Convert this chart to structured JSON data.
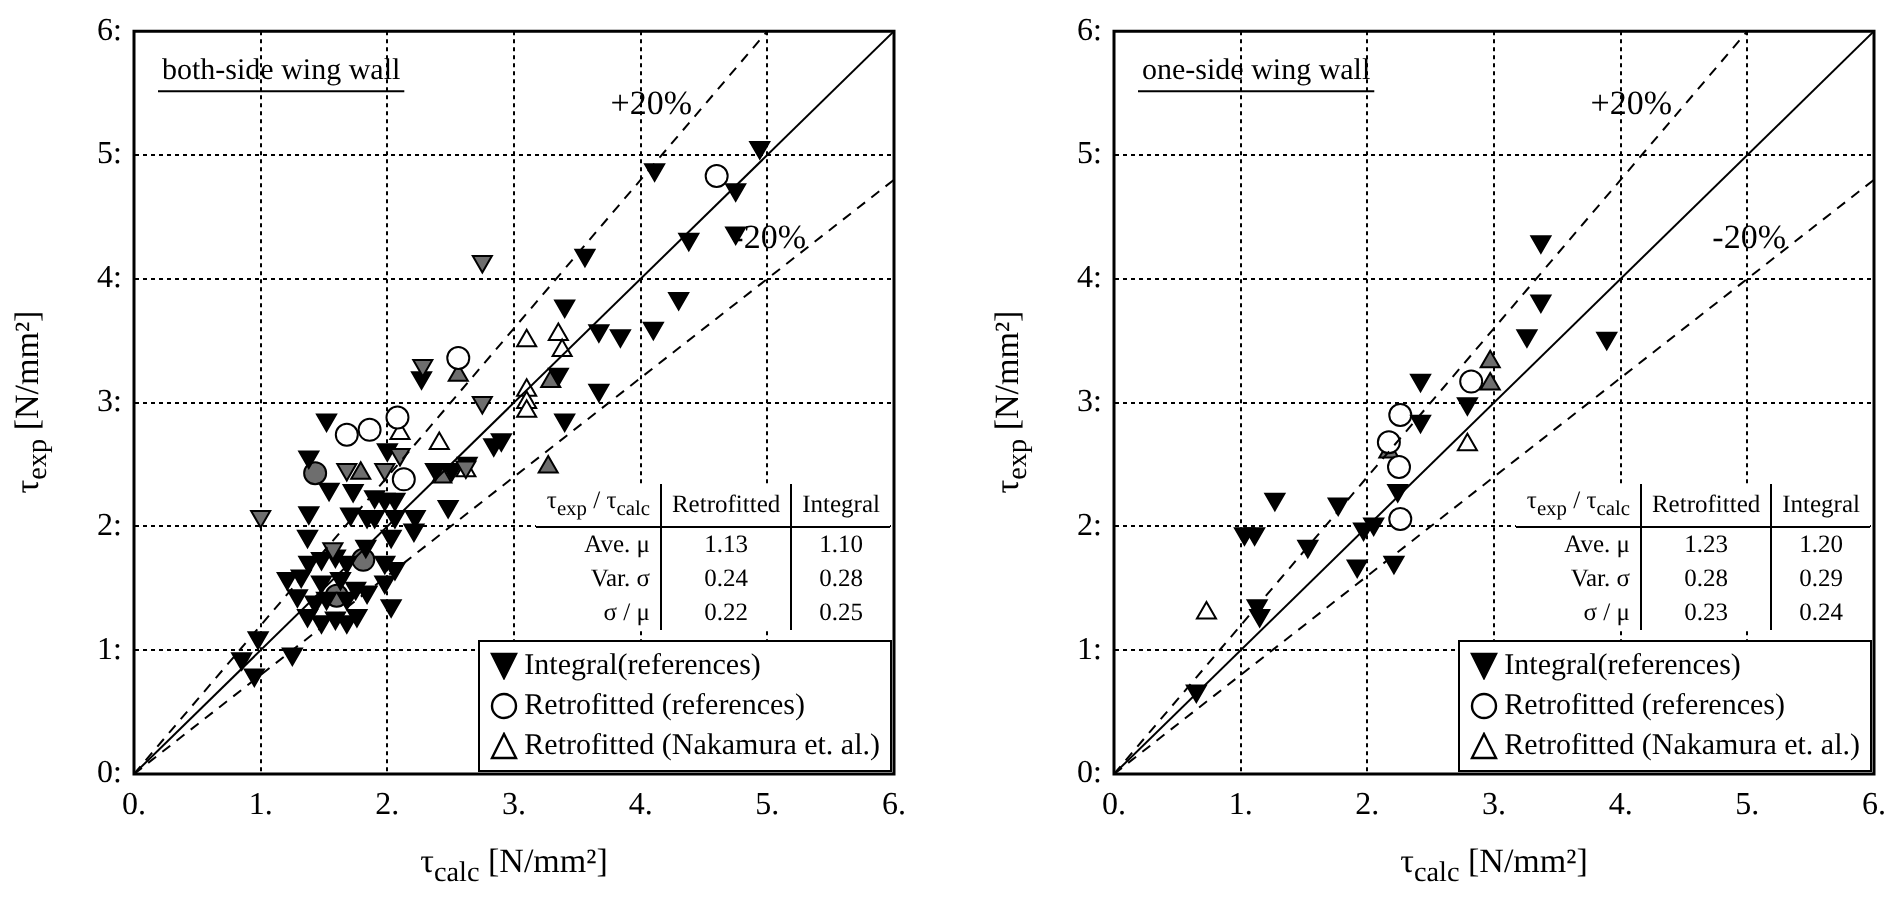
{
  "chart_data": [
    {
      "type": "scatter",
      "title": "both-side wing wall",
      "xlabel": "τ$_{calc}$ [N/mm²]",
      "ylabel": "τ$_{exp}$ [N/mm²]",
      "xlim": [
        0,
        6
      ],
      "ylim": [
        0,
        6
      ],
      "xticks": [
        {
          "value": 0,
          "label": "0."
        },
        {
          "value": 1,
          "label": "1."
        },
        {
          "value": 2,
          "label": "2."
        },
        {
          "value": 3,
          "label": "3."
        },
        {
          "value": 4,
          "label": "4."
        },
        {
          "value": 5,
          "label": "5."
        },
        {
          "value": 6,
          "label": "6."
        }
      ],
      "yticks": [
        {
          "value": 0,
          "label": "0:"
        },
        {
          "value": 1,
          "label": "1:"
        },
        {
          "value": 2,
          "label": "2:"
        },
        {
          "value": 3,
          "label": "3:"
        },
        {
          "value": 4,
          "label": "4:"
        },
        {
          "value": 5,
          "label": "5:"
        },
        {
          "value": 6,
          "label": "6:"
        }
      ],
      "grid": true,
      "legend": "bottom right",
      "series": [
        {
          "type": "line",
          "x": [
            0,
            6
          ],
          "values": [
            0,
            6
          ],
          "color": "#000000",
          "line_style": "solid",
          "marker": "none"
        },
        {
          "type": "line",
          "name": "+20%",
          "x": [
            0,
            5
          ],
          "values": [
            0,
            6
          ],
          "color": "#000000",
          "line_style": "dashed",
          "marker": "none"
        },
        {
          "type": "line",
          "name": "-20%",
          "x": [
            0,
            6
          ],
          "values": [
            0,
            4.8
          ],
          "color": "#000000",
          "line_style": "dashed",
          "marker": "none"
        },
        {
          "name": "Integral(references)",
          "color": "#000000",
          "marker": "triangle_down",
          "x": [
            0.85,
            0.95,
            0.98,
            1.25,
            1.37,
            1.48,
            1.59,
            1.68,
            1.76,
            2.03,
            1.29,
            1.43,
            1.52,
            1.68,
            1.84,
            1.21,
            1.32,
            1.48,
            1.63,
            1.75,
            1.98,
            1.38,
            1.48,
            1.59,
            1.68,
            1.83,
            1.98,
            2.06,
            1.37,
            2.03,
            2.21,
            1.38,
            1.71,
            1.84,
            1.9,
            2.06,
            2.22,
            1.9,
            1.98,
            2.06,
            2.48,
            1.54,
            1.73,
            1.38,
            2.0,
            1.52,
            2.38,
            2.51,
            2.63,
            2.84,
            2.9,
            3.4,
            3.67,
            3.35,
            2.27,
            3.67,
            3.84,
            4.1,
            3.4,
            4.3,
            3.56,
            4.38,
            4.75,
            4.75,
            4.11,
            4.94,
            1.0,
            2.75,
            2.28,
            1.68,
            1.98,
            2.1,
            2.62,
            2.75,
            1.57
          ],
          "values": [
            0.93,
            0.8,
            1.1,
            0.97,
            1.28,
            1.23,
            1.26,
            1.23,
            1.28,
            1.36,
            1.44,
            1.39,
            1.42,
            1.42,
            1.47,
            1.58,
            1.6,
            1.55,
            1.58,
            1.5,
            1.55,
            1.71,
            1.74,
            1.76,
            1.71,
            1.84,
            1.71,
            1.66,
            1.92,
            1.92,
            1.97,
            2.11,
            2.1,
            2.08,
            2.08,
            2.08,
            2.08,
            2.24,
            2.22,
            2.22,
            2.16,
            2.3,
            2.29,
            2.56,
            2.62,
            2.86,
            2.46,
            2.46,
            2.51,
            2.66,
            2.7,
            2.86,
            3.1,
            3.23,
            3.2,
            3.58,
            3.54,
            3.6,
            3.78,
            3.84,
            4.19,
            4.32,
            4.37,
            4.72,
            4.88,
            5.06,
            2.08,
            4.14,
            3.3,
            2.46,
            2.46,
            2.58,
            2.48,
            3.0,
            1.82
          ],
          "colors": [
            "#000000",
            "#000000",
            "#000000",
            "#000000",
            "#000000",
            "#000000",
            "#000000",
            "#000000",
            "#000000",
            "#000000",
            "#000000",
            "#000000",
            "#000000",
            "#000000",
            "#000000",
            "#000000",
            "#000000",
            "#000000",
            "#000000",
            "#000000",
            "#000000",
            "#000000",
            "#000000",
            "#000000",
            "#000000",
            "#000000",
            "#000000",
            "#000000",
            "#000000",
            "#000000",
            "#000000",
            "#000000",
            "#000000",
            "#000000",
            "#000000",
            "#000000",
            "#000000",
            "#000000",
            "#000000",
            "#000000",
            "#000000",
            "#000000",
            "#000000",
            "#000000",
            "#000000",
            "#000000",
            "#000000",
            "#000000",
            "#000000",
            "#000000",
            "#000000",
            "#000000",
            "#000000",
            "#000000",
            "#000000",
            "#000000",
            "#000000",
            "#000000",
            "#000000",
            "#000000",
            "#000000",
            "#000000",
            "#000000",
            "#000000",
            "#000000",
            "#000000",
            "#6e6e6e",
            "#6e6e6e",
            "#6e6e6e",
            "#6e6e6e",
            "#6e6e6e",
            "#6e6e6e",
            "#6e6e6e",
            "#6e6e6e",
            "#6e6e6e"
          ]
        },
        {
          "name": "Retrofitted (references)",
          "color": "#000000",
          "marker": "circle",
          "x": [
            2.56,
            1.68,
            1.86,
            2.08,
            2.13,
            4.6,
            1.43,
            1.81,
            1.6
          ],
          "values": [
            3.36,
            2.74,
            2.78,
            2.88,
            2.38,
            4.83,
            2.43,
            1.73,
            1.44
          ],
          "colors": [
            "#ffffff",
            "#ffffff",
            "#ffffff",
            "#ffffff",
            "#ffffff",
            "#ffffff",
            "#6e6e6e",
            "#6e6e6e",
            "#6e6e6e"
          ]
        },
        {
          "name": "Retrofitted (Nakamura et. al.)",
          "color": "#000000",
          "marker": "triangle",
          "x": [
            2.1,
            2.41,
            2.62,
            3.1,
            3.35,
            3.38,
            3.1,
            3.1,
            3.1,
            2.56,
            1.79,
            2.43,
            3.29,
            3.27
          ],
          "values": [
            2.75,
            2.67,
            2.45,
            3.5,
            3.55,
            3.42,
            3.1,
            3.0,
            2.93,
            3.22,
            2.43,
            2.4,
            3.17,
            2.48
          ],
          "colors": [
            "#ffffff",
            "#ffffff",
            "#ffffff",
            "#ffffff",
            "#ffffff",
            "#ffffff",
            "#ffffff",
            "#ffffff",
            "#ffffff",
            "#6e6e6e",
            "#6e6e6e",
            "#6e6e6e",
            "#6e6e6e",
            "#6e6e6e"
          ]
        }
      ],
      "annotations": [
        "τ$_{exp}$ / τ$_{calc}$",
        "Retrofitted",
        "Integral",
        "Ave. μ",
        "1.13",
        "1.10",
        "Var. σ",
        "0.24",
        "0.28",
        "σ / μ",
        "0.22",
        "0.25"
      ]
    },
    {
      "type": "scatter",
      "title": "one-side wing wall",
      "xlabel": "τ$_{calc}$ [N/mm²]",
      "ylabel": "τ$_{exp}$ [N/mm²]",
      "xlim": [
        0,
        6
      ],
      "ylim": [
        0,
        6
      ],
      "xticks": [
        {
          "value": 0,
          "label": "0."
        },
        {
          "value": 1,
          "label": "1."
        },
        {
          "value": 2,
          "label": "2."
        },
        {
          "value": 3,
          "label": "3."
        },
        {
          "value": 4,
          "label": "4."
        },
        {
          "value": 5,
          "label": "5."
        },
        {
          "value": 6,
          "label": "6."
        }
      ],
      "yticks": [
        {
          "value": 0,
          "label": "0:"
        },
        {
          "value": 1,
          "label": "1:"
        },
        {
          "value": 2,
          "label": "2:"
        },
        {
          "value": 3,
          "label": "3:"
        },
        {
          "value": 4,
          "label": "4:"
        },
        {
          "value": 5,
          "label": "5:"
        },
        {
          "value": 6,
          "label": "6:"
        }
      ],
      "grid": true,
      "legend": "bottom right",
      "series": [
        {
          "type": "line",
          "x": [
            0,
            6
          ],
          "values": [
            0,
            6
          ],
          "color": "#000000",
          "line_style": "solid",
          "marker": "none"
        },
        {
          "type": "line",
          "name": "+20%",
          "x": [
            0,
            5
          ],
          "values": [
            0,
            6
          ],
          "color": "#000000",
          "line_style": "dashed",
          "marker": "none"
        },
        {
          "type": "line",
          "name": "-20%",
          "x": [
            0,
            6
          ],
          "values": [
            0,
            4.8
          ],
          "color": "#000000",
          "line_style": "dashed",
          "marker": "none"
        },
        {
          "name": "Integral(references)",
          "color": "#000000",
          "marker": "triangle_down",
          "x": [
            0.65,
            1.13,
            1.15,
            1.03,
            1.11,
            1.27,
            1.53,
            1.77,
            1.92,
            1.97,
            2.05,
            2.21,
            2.24,
            2.42,
            2.42,
            2.79,
            3.37,
            3.37,
            3.26,
            3.89
          ],
          "values": [
            0.67,
            1.36,
            1.28,
            1.94,
            1.94,
            2.22,
            1.84,
            2.18,
            1.68,
            1.98,
            2.02,
            1.71,
            2.29,
            2.85,
            3.18,
            2.99,
            4.3,
            3.82,
            3.54,
            3.52
          ],
          "colors": [
            "#000000",
            "#000000",
            "#000000",
            "#000000",
            "#000000",
            "#000000",
            "#000000",
            "#000000",
            "#000000",
            "#000000",
            "#000000",
            "#000000",
            "#000000",
            "#000000",
            "#000000",
            "#000000",
            "#000000",
            "#000000",
            "#000000",
            "#000000"
          ]
        },
        {
          "name": "Retrofitted (references)",
          "color": "#000000",
          "marker": "circle",
          "x": [
            2.26,
            2.17,
            2.25,
            2.26,
            2.82
          ],
          "values": [
            2.06,
            2.68,
            2.48,
            2.9,
            3.17
          ],
          "colors": [
            "#ffffff",
            "#ffffff",
            "#ffffff",
            "#ffffff",
            "#ffffff"
          ]
        },
        {
          "name": "Retrofitted (Nakamura et. al.)",
          "color": "#000000",
          "marker": "triangle",
          "x": [
            0.73,
            2.79,
            2.17,
            2.97,
            2.97
          ],
          "values": [
            1.3,
            2.66,
            2.6,
            3.33,
            3.15
          ],
          "colors": [
            "#ffffff",
            "#ffffff",
            "#6e6e6e",
            "#6e6e6e",
            "#6e6e6e"
          ]
        }
      ],
      "annotations": [
        "τ$_{exp}$ / τ$_{calc}$",
        "Retrofitted",
        "Integral",
        "Ave. μ",
        "1.23",
        "1.20",
        "Var. σ",
        "0.28",
        "0.29",
        "σ / μ",
        "0.23",
        "0.24"
      ]
    }
  ]
}
